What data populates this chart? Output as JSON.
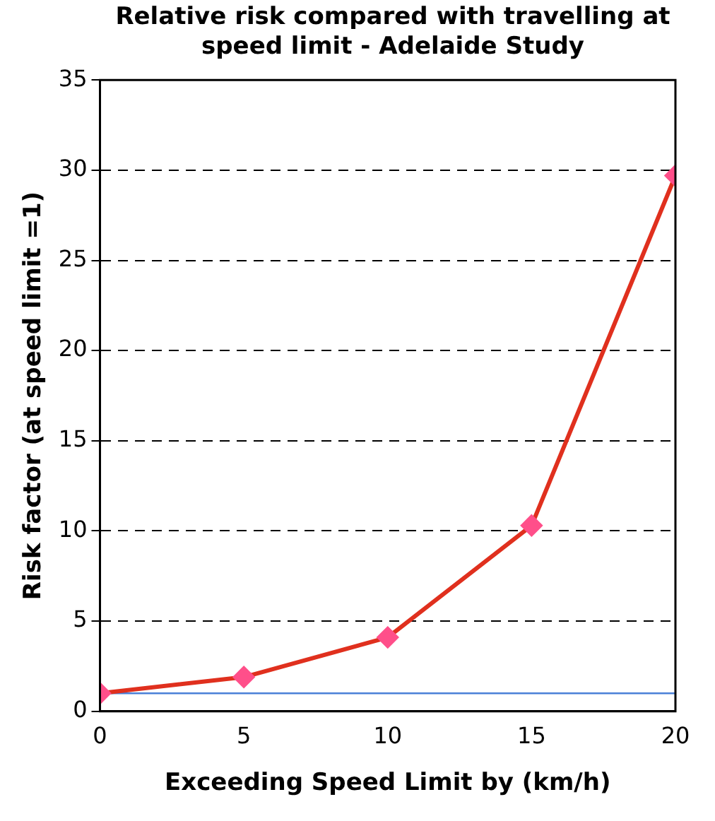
{
  "chart_data": {
    "type": "line",
    "title": "Relative risk compared with travelling at speed limit - Adelaide Study",
    "xlabel": "Exceeding Speed Limit by (km/h)",
    "ylabel": "Risk factor (at speed limit =1)",
    "x": [
      0,
      5,
      10,
      15,
      20
    ],
    "series": [
      {
        "color": "#e0301e",
        "values": [
          1,
          1.9,
          4.1,
          10.3,
          29.7
        ]
      }
    ],
    "xlim": [
      0,
      20
    ],
    "xticks": [
      0,
      5,
      10,
      15,
      20
    ],
    "ylim": [
      0,
      35
    ],
    "yticks": [
      0,
      5,
      10,
      15,
      20,
      25,
      30,
      35
    ],
    "grid": "y",
    "marker": "diamond",
    "line_style": "solid",
    "legend": false,
    "ref_lines": [
      {
        "axis": "y",
        "value": 1,
        "color": "#4a80d8"
      }
    ]
  }
}
